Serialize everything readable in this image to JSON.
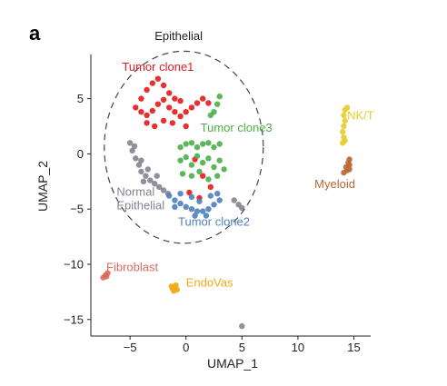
{
  "panel_letter": "a",
  "chart_data": {
    "type": "scatter",
    "xlabel": "UMAP_1",
    "ylabel": "UMAP_2",
    "xlim": [
      -8.5,
      16.5
    ],
    "ylim": [
      -16.5,
      9.0
    ],
    "xticks": [
      -5,
      0,
      5,
      10,
      15
    ],
    "yticks": [
      5,
      0,
      -5,
      -10,
      -15
    ],
    "xtick_labels": [
      "−5",
      "0",
      "5",
      "10",
      "15"
    ],
    "ytick_labels": [
      "5",
      "0",
      "−5",
      "−10",
      "−15"
    ],
    "grid": false,
    "legend": "none (direct labels)",
    "annotation": {
      "text": "Epithelial",
      "shape": "dashed-ellipse",
      "center": [
        -0.2,
        0.6
      ],
      "rx": 7.1,
      "ry": 8.7,
      "label_at": [
        -2.8,
        10.3
      ]
    },
    "series": [
      {
        "name": "Tumor clone1",
        "color": "#e41a1c",
        "label_at": [
          -2.5,
          7.5
        ],
        "points": [
          [
            -4.0,
            5.0
          ],
          [
            -3.5,
            5.8
          ],
          [
            -3.0,
            6.4
          ],
          [
            -2.5,
            6.8
          ],
          [
            -2.0,
            6.2
          ],
          [
            -1.5,
            5.5
          ],
          [
            -1.0,
            5.0
          ],
          [
            -0.5,
            4.8
          ],
          [
            -4.5,
            4.2
          ],
          [
            -4.0,
            3.8
          ],
          [
            -3.5,
            3.5
          ],
          [
            -3.0,
            3.9
          ],
          [
            -2.5,
            4.5
          ],
          [
            -2.0,
            4.9
          ],
          [
            -1.5,
            4.2
          ],
          [
            -1.0,
            3.8
          ],
          [
            -0.5,
            3.4
          ],
          [
            0.0,
            3.8
          ],
          [
            0.5,
            4.2
          ],
          [
            1.0,
            4.6
          ],
          [
            1.5,
            5.0
          ],
          [
            2.0,
            4.6
          ],
          [
            -3.5,
            2.8
          ],
          [
            -2.8,
            2.5
          ],
          [
            -2.0,
            3.0
          ],
          [
            -1.2,
            2.8
          ],
          [
            0.0,
            2.5
          ],
          [
            0.8,
            -0.5
          ],
          [
            1.5,
            -2.0
          ],
          [
            2.2,
            -3.0
          ],
          [
            0.3,
            -3.5
          ],
          [
            1.2,
            -4.0
          ]
        ]
      },
      {
        "name": "Tumor clone3",
        "color": "#4daf4a",
        "label_at": [
          4.5,
          2.0
        ],
        "points": [
          [
            -0.5,
            0.6
          ],
          [
            0.0,
            0.9
          ],
          [
            0.5,
            1.0
          ],
          [
            1.0,
            0.6
          ],
          [
            1.5,
            0.9
          ],
          [
            2.0,
            1.0
          ],
          [
            2.5,
            0.6
          ],
          [
            3.0,
            0.9
          ],
          [
            -0.5,
            -0.6
          ],
          [
            0.0,
            -0.3
          ],
          [
            0.5,
            -1.0
          ],
          [
            1.0,
            -0.2
          ],
          [
            1.5,
            -0.8
          ],
          [
            2.0,
            -0.4
          ],
          [
            2.5,
            -1.2
          ],
          [
            3.0,
            -0.6
          ],
          [
            -0.3,
            -1.8
          ],
          [
            0.5,
            -2.0
          ],
          [
            1.2,
            -1.6
          ],
          [
            2.0,
            -2.3
          ],
          [
            2.8,
            -2.0
          ],
          [
            3.4,
            -1.4
          ],
          [
            2.5,
            3.8
          ],
          [
            2.8,
            4.5
          ],
          [
            3.0,
            5.2
          ],
          [
            2.2,
            3.5
          ]
        ]
      },
      {
        "name": "Normal Epithelial",
        "color": "#868291",
        "label_at": [
          -6.2,
          -3.8
        ],
        "points": [
          [
            -5.0,
            1.0
          ],
          [
            -4.8,
            0.3
          ],
          [
            -4.5,
            -0.4
          ],
          [
            -4.2,
            -1.0
          ],
          [
            -4.0,
            -1.6
          ],
          [
            -3.6,
            -2.0
          ],
          [
            -3.2,
            -2.4
          ],
          [
            -2.8,
            -2.7
          ],
          [
            -2.4,
            -3.0
          ],
          [
            -2.0,
            -3.3
          ],
          [
            -1.6,
            -3.6
          ],
          [
            -4.6,
            0.7
          ],
          [
            -4.0,
            -0.6
          ],
          [
            -3.4,
            -1.4
          ],
          [
            -2.6,
            -2.0
          ],
          [
            -3.8,
            -2.5
          ],
          [
            4.3,
            -4.2
          ],
          [
            4.7,
            -4.6
          ],
          [
            5.0,
            -4.9
          ]
        ]
      },
      {
        "name": "Tumor clone2",
        "color": "#4f7fbe",
        "label_at": [
          2.5,
          -6.5
        ],
        "points": [
          [
            -1.5,
            -3.8
          ],
          [
            -1.0,
            -4.2
          ],
          [
            -0.5,
            -4.5
          ],
          [
            0.0,
            -4.8
          ],
          [
            0.5,
            -5.0
          ],
          [
            1.0,
            -5.2
          ],
          [
            1.5,
            -5.2
          ],
          [
            2.0,
            -5.0
          ],
          [
            2.5,
            -4.6
          ],
          [
            3.0,
            -4.2
          ],
          [
            -0.5,
            -3.6
          ],
          [
            0.5,
            -3.9
          ],
          [
            1.2,
            -4.3
          ],
          [
            2.2,
            -3.8
          ],
          [
            1.8,
            -5.6
          ],
          [
            0.8,
            -5.6
          ],
          [
            -1.0,
            -4.8
          ],
          [
            2.8,
            -3.6
          ]
        ]
      },
      {
        "name": "NK/T",
        "color": "#e5cc2c",
        "label_at": [
          15.6,
          3.1
        ],
        "points": [
          [
            14.2,
            4.0
          ],
          [
            14.1,
            3.5
          ],
          [
            14.2,
            3.0
          ],
          [
            14.1,
            2.5
          ],
          [
            14.0,
            2.0
          ],
          [
            14.1,
            1.5
          ],
          [
            14.0,
            1.0
          ],
          [
            14.4,
            4.2
          ],
          [
            14.2,
            1.2
          ]
        ]
      },
      {
        "name": "Myeloid",
        "color": "#b86733",
        "label_at": [
          13.3,
          -3.1
        ],
        "points": [
          [
            14.6,
            -0.5
          ],
          [
            14.6,
            -1.0
          ],
          [
            14.4,
            -1.5
          ],
          [
            14.3,
            -1.2
          ],
          [
            14.1,
            -1.7
          ],
          [
            14.6,
            -1.4
          ],
          [
            14.5,
            -0.8
          ]
        ]
      },
      {
        "name": "Fibroblast",
        "color": "#d86b5b",
        "label_at": [
          -4.8,
          -10.6
        ],
        "points": [
          [
            -7.2,
            -11.0
          ],
          [
            -7.4,
            -11.2
          ],
          [
            -7.0,
            -10.8
          ],
          [
            -7.1,
            -11.1
          ]
        ]
      },
      {
        "name": "EndoVas",
        "color": "#f2a81a",
        "label_at": [
          2.1,
          -12.0
        ],
        "points": [
          [
            -1.3,
            -12.0
          ],
          [
            -1.0,
            -12.1
          ],
          [
            -0.8,
            -12.3
          ],
          [
            -1.1,
            -12.4
          ],
          [
            -0.9,
            -11.9
          ],
          [
            -1.2,
            -12.2
          ]
        ]
      },
      {
        "name": "",
        "color": "#868291",
        "points": [
          [
            5.0,
            -15.6
          ]
        ]
      }
    ]
  }
}
